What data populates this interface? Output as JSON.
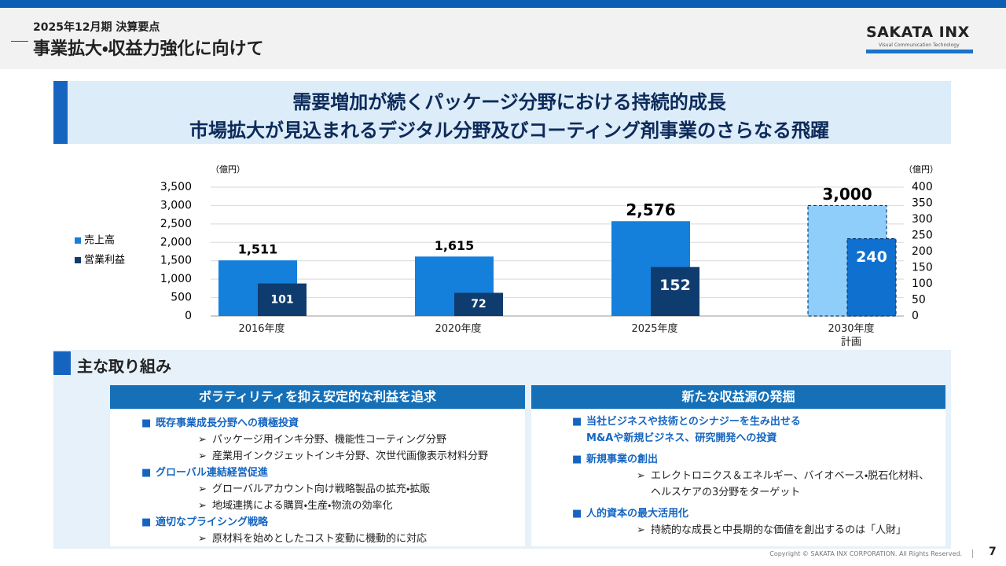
{
  "header": {
    "period": "2025年12月期 決算要点",
    "title": "事業拡大・収益力強化に向けて",
    "logo": "SAKATA INX",
    "tagline": "Visual Communication Technology"
  },
  "banner": {
    "lines": [
      "需要増加が続くパッケージ分野における持続的成長",
      "市場拡大が見込まれるデジタル分野及びコーティング剤事業のさらなる飛躍"
    ]
  },
  "chart_data": {
    "type": "bar",
    "y_label": "（億円）",
    "y2_label": "（億円）",
    "categories": [
      "2016年度",
      "2020年度",
      "2025年度",
      "2030年度\n計画"
    ],
    "series": [
      {
        "name": "売上高",
        "color": "#1580dc",
        "colors": [
          "#1580dc",
          "#1580dc",
          "#1580dc",
          "#8fcdfa"
        ],
        "values": [
          1511,
          1615,
          2576,
          3000
        ],
        "value_labels": [
          "1,511",
          "1,615",
          "2,576",
          "3,000"
        ]
      },
      {
        "name": "営業利益",
        "color": "#0f3c6e",
        "colors": [
          "#0f3c6e",
          "#0f3c6e",
          "#0f3c6e",
          "#1070d0"
        ],
        "axis": "y2",
        "values": [
          101,
          72,
          152,
          240
        ]
      }
    ],
    "dashed": [
      false,
      false,
      false,
      true
    ],
    "ylim": [
      0,
      3500
    ],
    "yticks": [
      0,
      500,
      {
        "value": 1000,
        "label": "1,000"
      },
      {
        "value": 1500,
        "label": "1,500"
      },
      {
        "value": 2000,
        "label": "2,000"
      },
      {
        "value": 2500,
        "label": "2,500"
      },
      {
        "value": 3000,
        "label": "3,000"
      },
      {
        "value": 3500,
        "label": "3,500"
      }
    ],
    "y2lim": [
      0,
      400
    ],
    "y2ticks": [
      0,
      50,
      100,
      150,
      200,
      250,
      300,
      350,
      400
    ],
    "grid": true
  },
  "initiatives": {
    "title": "主な取り組み",
    "columns": [
      {
        "heading": "ボラティリティを抑え安定的な利益を追求",
        "items": [
          {
            "title": "既存事業成長分野への積極投資",
            "points": [
              "パッケージ用インキ分野、機能性コーティング分野",
              "産業用インクジェットインキ分野、次世代画像表示材料分野"
            ]
          },
          {
            "title": "グローバル連結経営促進",
            "points": [
              "グローバルアカウント向け戦略製品の拡充・拡販",
              "地域連携による購買・生産・物流の効率化"
            ]
          },
          {
            "title": "適切なプライシング戦略",
            "points": [
              "原材料を始めとしたコスト変動に機動的に対応"
            ]
          }
        ]
      },
      {
        "heading": "新たな収益源の発掘",
        "items": [
          {
            "title": "当社ビジネスや技術とのシナジーを生み出せる\nM&Aや新規ビジネス、研究開発への投資",
            "points": []
          },
          {
            "title": "新規事業の創出",
            "points": [
              "エレクトロニクス＆エネルギー、バイオベース・脱石化材料、\nヘルスケアの3分野をターゲット"
            ]
          },
          {
            "title": "人的資本の最大活用化",
            "points": [
              "持続的な成長と中長期的な価値を創出するのは「人財」"
            ]
          }
        ]
      }
    ]
  },
  "footer": {
    "copyright": "Copyright © SAKATA INX CORPORATION. All Rights Reserved.",
    "page": "7"
  }
}
